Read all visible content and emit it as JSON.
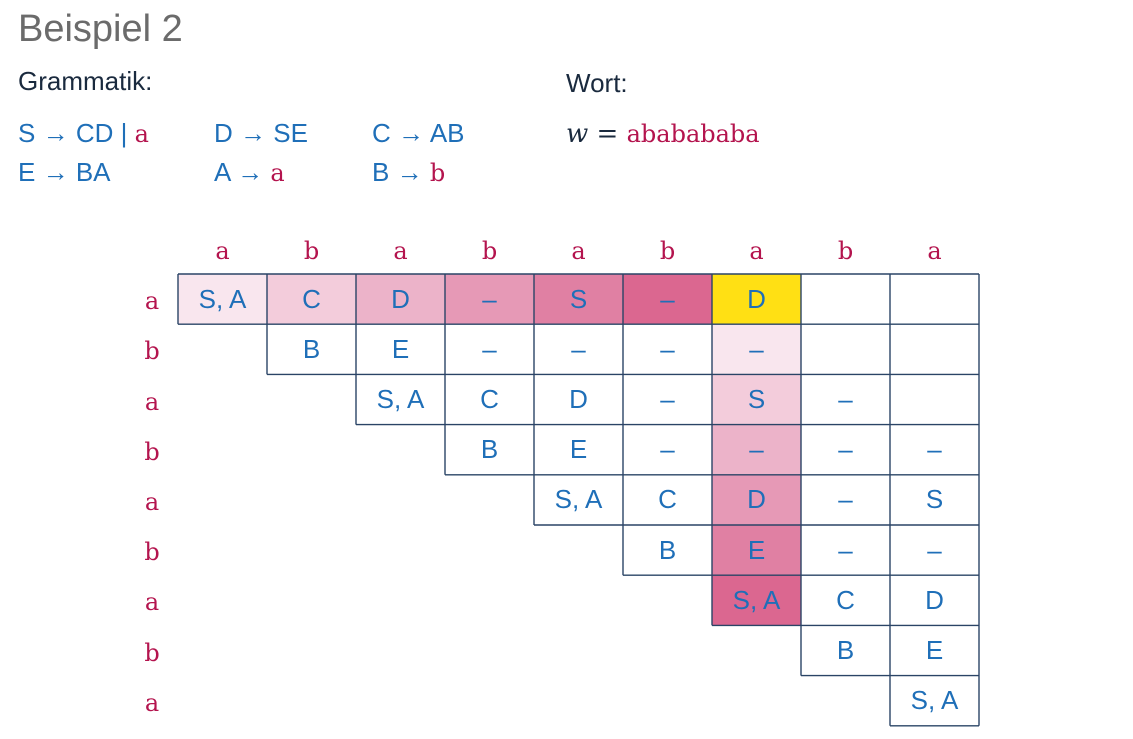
{
  "title": "Beispiel 2",
  "grammar": {
    "heading": "Grammatik:",
    "rules": [
      {
        "lhs": "S",
        "arrow": "→",
        "rhs": "CD | ",
        "terminal": "a"
      },
      {
        "lhs": "D",
        "arrow": "→",
        "rhs": "SE",
        "terminal": ""
      },
      {
        "lhs": "C",
        "arrow": "→",
        "rhs": "AB",
        "terminal": ""
      },
      {
        "lhs": "E",
        "arrow": "→",
        "rhs": "BA",
        "terminal": ""
      },
      {
        "lhs": "A",
        "arrow": "→",
        "rhs": "",
        "terminal": "a"
      },
      {
        "lhs": "B",
        "arrow": "→",
        "rhs": "",
        "terminal": "b"
      }
    ]
  },
  "word": {
    "heading": "Wort:",
    "variable": "w",
    "equals": "=",
    "value": "ababababa"
  },
  "table": {
    "column_labels": [
      "a",
      "b",
      "a",
      "b",
      "a",
      "b",
      "a",
      "b",
      "a"
    ],
    "row_labels": [
      "a",
      "b",
      "a",
      "b",
      "a",
      "b",
      "a",
      "b",
      "a"
    ],
    "colors": {
      "line": "#2a4466",
      "highlight": "#ffe014",
      "pink_1": "#f9e6ee",
      "pink_2": "#f3ccdb",
      "pink_3": "#ecb3c9",
      "pink_4": "#e699b6",
      "pink_5": "#e080a3",
      "pink_6": "#db6790"
    },
    "cells": [
      {
        "row": 0,
        "col": 0,
        "text": "S, A",
        "shade": "pink_1"
      },
      {
        "row": 0,
        "col": 1,
        "text": "C",
        "shade": "pink_2"
      },
      {
        "row": 0,
        "col": 2,
        "text": "D",
        "shade": "pink_3"
      },
      {
        "row": 0,
        "col": 3,
        "text": "–",
        "shade": "pink_4"
      },
      {
        "row": 0,
        "col": 4,
        "text": "S",
        "shade": "pink_5"
      },
      {
        "row": 0,
        "col": 5,
        "text": "–",
        "shade": "pink_6"
      },
      {
        "row": 0,
        "col": 6,
        "text": "D",
        "shade": "highlight"
      },
      {
        "row": 0,
        "col": 7,
        "text": "",
        "shade": ""
      },
      {
        "row": 0,
        "col": 8,
        "text": "",
        "shade": ""
      },
      {
        "row": 1,
        "col": 1,
        "text": "B",
        "shade": ""
      },
      {
        "row": 1,
        "col": 2,
        "text": "E",
        "shade": ""
      },
      {
        "row": 1,
        "col": 3,
        "text": "–",
        "shade": ""
      },
      {
        "row": 1,
        "col": 4,
        "text": "–",
        "shade": ""
      },
      {
        "row": 1,
        "col": 5,
        "text": "–",
        "shade": ""
      },
      {
        "row": 1,
        "col": 6,
        "text": "–",
        "shade": "pink_1"
      },
      {
        "row": 1,
        "col": 7,
        "text": "",
        "shade": ""
      },
      {
        "row": 1,
        "col": 8,
        "text": "",
        "shade": ""
      },
      {
        "row": 2,
        "col": 2,
        "text": "S, A",
        "shade": ""
      },
      {
        "row": 2,
        "col": 3,
        "text": "C",
        "shade": ""
      },
      {
        "row": 2,
        "col": 4,
        "text": "D",
        "shade": ""
      },
      {
        "row": 2,
        "col": 5,
        "text": "–",
        "shade": ""
      },
      {
        "row": 2,
        "col": 6,
        "text": "S",
        "shade": "pink_2"
      },
      {
        "row": 2,
        "col": 7,
        "text": "–",
        "shade": ""
      },
      {
        "row": 2,
        "col": 8,
        "text": "",
        "shade": ""
      },
      {
        "row": 3,
        "col": 3,
        "text": "B",
        "shade": ""
      },
      {
        "row": 3,
        "col": 4,
        "text": "E",
        "shade": ""
      },
      {
        "row": 3,
        "col": 5,
        "text": "–",
        "shade": ""
      },
      {
        "row": 3,
        "col": 6,
        "text": "–",
        "shade": "pink_3"
      },
      {
        "row": 3,
        "col": 7,
        "text": "–",
        "shade": ""
      },
      {
        "row": 3,
        "col": 8,
        "text": "–",
        "shade": ""
      },
      {
        "row": 4,
        "col": 4,
        "text": "S, A",
        "shade": ""
      },
      {
        "row": 4,
        "col": 5,
        "text": "C",
        "shade": ""
      },
      {
        "row": 4,
        "col": 6,
        "text": "D",
        "shade": "pink_4"
      },
      {
        "row": 4,
        "col": 7,
        "text": "–",
        "shade": ""
      },
      {
        "row": 4,
        "col": 8,
        "text": "S",
        "shade": ""
      },
      {
        "row": 5,
        "col": 5,
        "text": "B",
        "shade": ""
      },
      {
        "row": 5,
        "col": 6,
        "text": "E",
        "shade": "pink_5"
      },
      {
        "row": 5,
        "col": 7,
        "text": "–",
        "shade": ""
      },
      {
        "row": 5,
        "col": 8,
        "text": "–",
        "shade": ""
      },
      {
        "row": 6,
        "col": 6,
        "text": "S, A",
        "shade": "pink_6"
      },
      {
        "row": 6,
        "col": 7,
        "text": "C",
        "shade": ""
      },
      {
        "row": 6,
        "col": 8,
        "text": "D",
        "shade": ""
      },
      {
        "row": 7,
        "col": 7,
        "text": "B",
        "shade": ""
      },
      {
        "row": 7,
        "col": 8,
        "text": "E",
        "shade": ""
      },
      {
        "row": 8,
        "col": 8,
        "text": "S, A",
        "shade": ""
      }
    ]
  }
}
